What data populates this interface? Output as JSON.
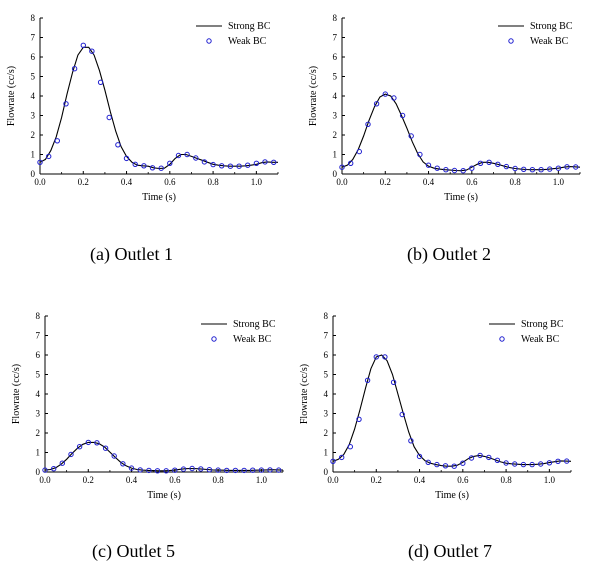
{
  "chart_data": [
    {
      "type": "line",
      "caption": "(a) Outlet 1",
      "xlabel": "Time (s)",
      "ylabel": "Flowrate (cc/s)",
      "xlim": [
        0,
        1.1
      ],
      "ylim": [
        0,
        8
      ],
      "xticks": [
        "0.0",
        "0.2",
        "0.4",
        "0.6",
        "0.8",
        "1.0"
      ],
      "yticks": [
        "0",
        "1",
        "2",
        "3",
        "4",
        "5",
        "6",
        "7",
        "8"
      ],
      "legend": [
        "Strong BC",
        "Weak BC"
      ],
      "series": [
        {
          "name": "Strong BC",
          "kind": "line",
          "x": [
            0,
            0.025,
            0.05,
            0.075,
            0.1,
            0.125,
            0.15,
            0.175,
            0.2,
            0.225,
            0.25,
            0.275,
            0.3,
            0.325,
            0.35,
            0.375,
            0.4,
            0.425,
            0.45,
            0.475,
            0.5,
            0.525,
            0.55,
            0.575,
            0.6,
            0.625,
            0.65,
            0.675,
            0.7,
            0.725,
            0.75,
            0.775,
            0.8,
            0.825,
            0.85,
            0.875,
            0.9,
            0.925,
            0.95,
            0.975,
            1.0,
            1.025,
            1.05,
            1.075,
            1.1
          ],
          "y": [
            0.6,
            0.75,
            1.2,
            1.9,
            2.9,
            4.1,
            5.2,
            6.1,
            6.5,
            6.5,
            6.1,
            5.3,
            4.3,
            3.2,
            2.2,
            1.4,
            0.9,
            0.6,
            0.45,
            0.42,
            0.4,
            0.32,
            0.28,
            0.3,
            0.5,
            0.8,
            1.0,
            1.0,
            0.9,
            0.8,
            0.7,
            0.6,
            0.5,
            0.45,
            0.42,
            0.4,
            0.4,
            0.4,
            0.42,
            0.45,
            0.5,
            0.58,
            0.62,
            0.6,
            0.6
          ]
        },
        {
          "name": "Weak BC",
          "kind": "markers",
          "x": [
            0,
            0.04,
            0.08,
            0.12,
            0.16,
            0.2,
            0.24,
            0.28,
            0.32,
            0.36,
            0.4,
            0.44,
            0.48,
            0.52,
            0.56,
            0.6,
            0.64,
            0.68,
            0.72,
            0.76,
            0.8,
            0.84,
            0.88,
            0.92,
            0.96,
            1.0,
            1.04,
            1.08
          ],
          "y": [
            0.6,
            0.9,
            1.7,
            3.6,
            5.4,
            6.6,
            6.3,
            4.7,
            2.9,
            1.5,
            0.8,
            0.5,
            0.42,
            0.32,
            0.3,
            0.55,
            0.95,
            1.0,
            0.82,
            0.62,
            0.48,
            0.42,
            0.4,
            0.4,
            0.45,
            0.55,
            0.62,
            0.6
          ]
        }
      ]
    },
    {
      "type": "line",
      "caption": "(b) Outlet 2",
      "xlabel": "Time (s)",
      "ylabel": "Flowrate (cc/s)",
      "xlim": [
        0,
        1.1
      ],
      "ylim": [
        0,
        8
      ],
      "xticks": [
        "0.0",
        "0.2",
        "0.4",
        "0.6",
        "0.8",
        "1.0"
      ],
      "yticks": [
        "0",
        "1",
        "2",
        "3",
        "4",
        "5",
        "6",
        "7",
        "8"
      ],
      "legend": [
        "Strong BC",
        "Weak BC"
      ],
      "series": [
        {
          "name": "Strong BC",
          "kind": "line",
          "x": [
            0,
            0.025,
            0.05,
            0.075,
            0.1,
            0.125,
            0.15,
            0.175,
            0.2,
            0.225,
            0.25,
            0.275,
            0.3,
            0.325,
            0.35,
            0.375,
            0.4,
            0.425,
            0.45,
            0.475,
            0.5,
            0.525,
            0.55,
            0.575,
            0.6,
            0.625,
            0.65,
            0.675,
            0.7,
            0.725,
            0.75,
            0.775,
            0.8,
            0.825,
            0.85,
            0.875,
            0.9,
            0.925,
            0.95,
            0.975,
            1.0,
            1.025,
            1.05,
            1.075,
            1.1
          ],
          "y": [
            0.35,
            0.45,
            0.75,
            1.25,
            1.95,
            2.75,
            3.45,
            3.95,
            4.1,
            4.0,
            3.6,
            3.0,
            2.35,
            1.65,
            1.05,
            0.62,
            0.4,
            0.3,
            0.25,
            0.22,
            0.2,
            0.18,
            0.17,
            0.2,
            0.35,
            0.5,
            0.6,
            0.6,
            0.55,
            0.48,
            0.4,
            0.33,
            0.28,
            0.25,
            0.23,
            0.22,
            0.22,
            0.22,
            0.24,
            0.27,
            0.3,
            0.35,
            0.38,
            0.37,
            0.35
          ]
        },
        {
          "name": "Weak BC",
          "kind": "markers",
          "x": [
            0,
            0.04,
            0.08,
            0.12,
            0.16,
            0.2,
            0.24,
            0.28,
            0.32,
            0.36,
            0.4,
            0.44,
            0.48,
            0.52,
            0.56,
            0.6,
            0.64,
            0.68,
            0.72,
            0.76,
            0.8,
            0.84,
            0.88,
            0.92,
            0.96,
            1.0,
            1.04,
            1.08
          ],
          "y": [
            0.35,
            0.55,
            1.15,
            2.55,
            3.6,
            4.1,
            3.9,
            3.0,
            1.95,
            1.0,
            0.45,
            0.3,
            0.22,
            0.18,
            0.17,
            0.3,
            0.55,
            0.6,
            0.5,
            0.38,
            0.28,
            0.24,
            0.22,
            0.22,
            0.25,
            0.3,
            0.37,
            0.36
          ]
        }
      ]
    },
    {
      "type": "line",
      "caption": "(c) Outlet 5",
      "xlabel": "Time (s)",
      "ylabel": "Flowrate (cc/s)",
      "xlim": [
        0,
        1.1
      ],
      "ylim": [
        0,
        8
      ],
      "xticks": [
        "0.0",
        "0.2",
        "0.4",
        "0.6",
        "0.8",
        "1.0"
      ],
      "yticks": [
        "0",
        "1",
        "2",
        "3",
        "4",
        "5",
        "6",
        "7",
        "8"
      ],
      "legend": [
        "Strong BC",
        "Weak BC"
      ],
      "series": [
        {
          "name": "Strong BC",
          "kind": "line",
          "x": [
            0,
            0.025,
            0.05,
            0.075,
            0.1,
            0.125,
            0.15,
            0.175,
            0.2,
            0.225,
            0.25,
            0.275,
            0.3,
            0.325,
            0.35,
            0.375,
            0.4,
            0.425,
            0.45,
            0.475,
            0.5,
            0.525,
            0.55,
            0.575,
            0.6,
            0.625,
            0.65,
            0.675,
            0.7,
            0.725,
            0.75,
            0.775,
            0.8,
            0.825,
            0.85,
            0.875,
            0.9,
            0.925,
            0.95,
            0.975,
            1.0,
            1.025,
            1.05,
            1.075,
            1.1
          ],
          "y": [
            0.1,
            0.13,
            0.22,
            0.4,
            0.65,
            0.95,
            1.22,
            1.42,
            1.52,
            1.52,
            1.45,
            1.28,
            1.02,
            0.75,
            0.5,
            0.32,
            0.2,
            0.13,
            0.1,
            0.08,
            0.07,
            0.06,
            0.06,
            0.07,
            0.1,
            0.14,
            0.17,
            0.18,
            0.17,
            0.15,
            0.13,
            0.11,
            0.1,
            0.09,
            0.08,
            0.08,
            0.08,
            0.08,
            0.08,
            0.09,
            0.1,
            0.11,
            0.12,
            0.11,
            0.1
          ]
        },
        {
          "name": "Weak BC",
          "kind": "markers",
          "x": [
            0,
            0.04,
            0.08,
            0.12,
            0.16,
            0.2,
            0.24,
            0.28,
            0.32,
            0.36,
            0.4,
            0.44,
            0.48,
            0.52,
            0.56,
            0.6,
            0.64,
            0.68,
            0.72,
            0.76,
            0.8,
            0.84,
            0.88,
            0.92,
            0.96,
            1.0,
            1.04,
            1.08
          ],
          "y": [
            0.1,
            0.17,
            0.45,
            0.9,
            1.3,
            1.52,
            1.5,
            1.22,
            0.82,
            0.42,
            0.2,
            0.11,
            0.08,
            0.06,
            0.06,
            0.09,
            0.15,
            0.18,
            0.16,
            0.12,
            0.1,
            0.08,
            0.08,
            0.08,
            0.09,
            0.1,
            0.11,
            0.1
          ]
        }
      ]
    },
    {
      "type": "line",
      "caption": "(d) Outlet 7",
      "xlabel": "Time (s)",
      "ylabel": "Flowrate (cc/s)",
      "xlim": [
        0,
        1.1
      ],
      "ylim": [
        0,
        8
      ],
      "xticks": [
        "0.0",
        "0.2",
        "0.4",
        "0.6",
        "0.8",
        "1.0"
      ],
      "yticks": [
        "0",
        "1",
        "2",
        "3",
        "4",
        "5",
        "6",
        "7",
        "8"
      ],
      "legend": [
        "Strong BC",
        "Weak BC"
      ],
      "series": [
        {
          "name": "Strong BC",
          "kind": "line",
          "x": [
            0,
            0.025,
            0.05,
            0.075,
            0.1,
            0.125,
            0.15,
            0.175,
            0.2,
            0.225,
            0.25,
            0.275,
            0.3,
            0.325,
            0.35,
            0.375,
            0.4,
            0.425,
            0.45,
            0.475,
            0.5,
            0.525,
            0.55,
            0.575,
            0.6,
            0.625,
            0.65,
            0.675,
            0.7,
            0.725,
            0.75,
            0.775,
            0.8,
            0.825,
            0.85,
            0.875,
            0.9,
            0.925,
            0.95,
            0.975,
            1.0,
            1.025,
            1.05,
            1.075,
            1.1
          ],
          "y": [
            0.55,
            0.65,
            0.9,
            1.4,
            2.2,
            3.2,
            4.3,
            5.3,
            5.9,
            6.0,
            5.7,
            5.0,
            4.0,
            3.0,
            2.05,
            1.3,
            0.85,
            0.58,
            0.45,
            0.38,
            0.33,
            0.3,
            0.3,
            0.35,
            0.5,
            0.68,
            0.8,
            0.85,
            0.8,
            0.72,
            0.62,
            0.52,
            0.45,
            0.42,
            0.4,
            0.38,
            0.38,
            0.38,
            0.4,
            0.43,
            0.48,
            0.53,
            0.57,
            0.56,
            0.55
          ]
        },
        {
          "name": "Weak BC",
          "kind": "markers",
          "x": [
            0,
            0.04,
            0.08,
            0.12,
            0.16,
            0.2,
            0.24,
            0.28,
            0.32,
            0.36,
            0.4,
            0.44,
            0.48,
            0.52,
            0.56,
            0.6,
            0.64,
            0.68,
            0.72,
            0.76,
            0.8,
            0.84,
            0.88,
            0.92,
            0.96,
            1.0,
            1.04,
            1.08
          ],
          "y": [
            0.55,
            0.75,
            1.3,
            2.7,
            4.7,
            5.9,
            5.9,
            4.6,
            2.95,
            1.6,
            0.8,
            0.5,
            0.38,
            0.32,
            0.3,
            0.45,
            0.72,
            0.85,
            0.75,
            0.6,
            0.46,
            0.41,
            0.38,
            0.38,
            0.41,
            0.47,
            0.55,
            0.56
          ]
        }
      ]
    }
  ]
}
